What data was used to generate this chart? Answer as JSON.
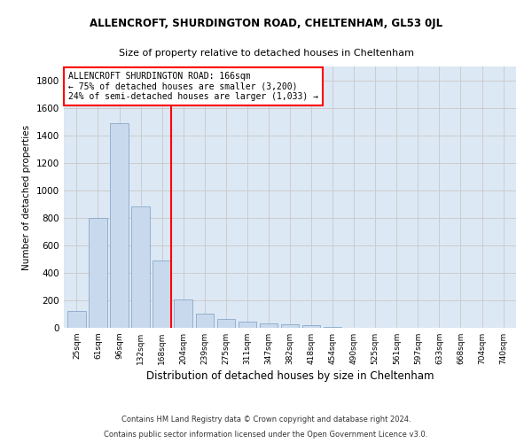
{
  "title": "ALLENCROFT, SHURDINGTON ROAD, CHELTENHAM, GL53 0JL",
  "subtitle": "Size of property relative to detached houses in Cheltenham",
  "xlabel": "Distribution of detached houses by size in Cheltenham",
  "ylabel": "Number of detached properties",
  "footer1": "Contains HM Land Registry data © Crown copyright and database right 2024.",
  "footer2": "Contains public sector information licensed under the Open Government Licence v3.0.",
  "categories": [
    "25sqm",
    "61sqm",
    "96sqm",
    "132sqm",
    "168sqm",
    "204sqm",
    "239sqm",
    "275sqm",
    "311sqm",
    "347sqm",
    "382sqm",
    "418sqm",
    "454sqm",
    "490sqm",
    "525sqm",
    "561sqm",
    "597sqm",
    "633sqm",
    "668sqm",
    "704sqm",
    "740sqm"
  ],
  "values": [
    120,
    800,
    1490,
    880,
    490,
    205,
    105,
    65,
    45,
    32,
    25,
    18,
    8,
    0,
    0,
    0,
    0,
    0,
    0,
    0,
    0
  ],
  "bar_color": "#c9d9ed",
  "bar_edge_color": "#7a9fc2",
  "grid_color": "#cccccc",
  "background_color": "#dde8f5",
  "annotation_box_text1": "ALLENCROFT SHURDINGTON ROAD: 166sqm",
  "annotation_box_text2": "← 75% of detached houses are smaller (3,200)",
  "annotation_box_text3": "24% of semi-detached houses are larger (1,033) →",
  "annotation_box_color": "white",
  "annotation_border_color": "red",
  "vline_x": 4.42,
  "ylim": [
    0,
    1900
  ],
  "yticks": [
    0,
    200,
    400,
    600,
    800,
    1000,
    1200,
    1400,
    1600,
    1800
  ]
}
